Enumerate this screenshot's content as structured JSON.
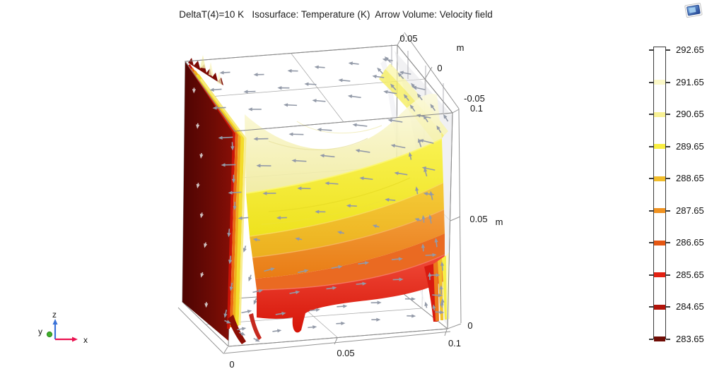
{
  "title": "DeltaT(4)=10 K   Isosurface: Temperature (K)  Arrow Volume: Velocity field",
  "axes": {
    "unit_label": "m",
    "x": {
      "ticks": [
        "0",
        "0.05",
        "0.1"
      ]
    },
    "y": {
      "ticks": [
        "0.05",
        "0",
        "-0.05"
      ]
    },
    "z": {
      "ticks": [
        "0.1",
        "0.05",
        "0"
      ]
    },
    "triad": {
      "x": "x",
      "y": "y",
      "z": "z"
    }
  },
  "legend": {
    "entries": [
      {
        "value": "292.65",
        "color": "#ffffff"
      },
      {
        "value": "291.65",
        "color": "#fcf9c8"
      },
      {
        "value": "290.65",
        "color": "#f8f194"
      },
      {
        "value": "289.65",
        "color": "#f9ee42"
      },
      {
        "value": "288.65",
        "color": "#f2bd2a"
      },
      {
        "value": "287.65",
        "color": "#f09220"
      },
      {
        "value": "286.65",
        "color": "#e55713"
      },
      {
        "value": "285.65",
        "color": "#e22112"
      },
      {
        "value": "284.65",
        "color": "#b2140a"
      },
      {
        "value": "283.65",
        "color": "#6f0c05"
      }
    ]
  },
  "chart_data": {
    "type": "isosurface",
    "title": "DeltaT(4)=10 K   Isosurface: Temperature (K)  Arrow Volume: Velocity field",
    "parameter": "DeltaT(4)=10 K",
    "plots": [
      "Isosurface: Temperature (K)",
      "Arrow Volume: Velocity field"
    ],
    "iso_levels_K": [
      283.65,
      284.65,
      285.65,
      286.65,
      287.65,
      288.65,
      289.65,
      290.65,
      291.65,
      292.65
    ],
    "iso_colors": [
      "#6f0c05",
      "#b2140a",
      "#e22112",
      "#e55713",
      "#f09220",
      "#f2bd2a",
      "#f9ee42",
      "#f8f194",
      "#fcf9c8",
      "#ffffff"
    ],
    "colorbar": {
      "min": 283.65,
      "max": 292.65,
      "orientation": "vertical",
      "position": "right"
    },
    "axis_ranges_m": {
      "x": [
        0,
        0.1
      ],
      "y": [
        -0.05,
        0.05
      ],
      "z": [
        0,
        0.1
      ]
    },
    "axis_ticks_m": {
      "x": [
        0,
        0.05,
        0.1
      ],
      "y": [
        0.05,
        0,
        -0.05
      ],
      "z": [
        0,
        0.05,
        0.1
      ]
    },
    "unit": "m",
    "flow_pattern": "convection roll: leftward along top, down at left dark-red (cold) wall, rightward along bottom, up at right (warm) wall"
  }
}
